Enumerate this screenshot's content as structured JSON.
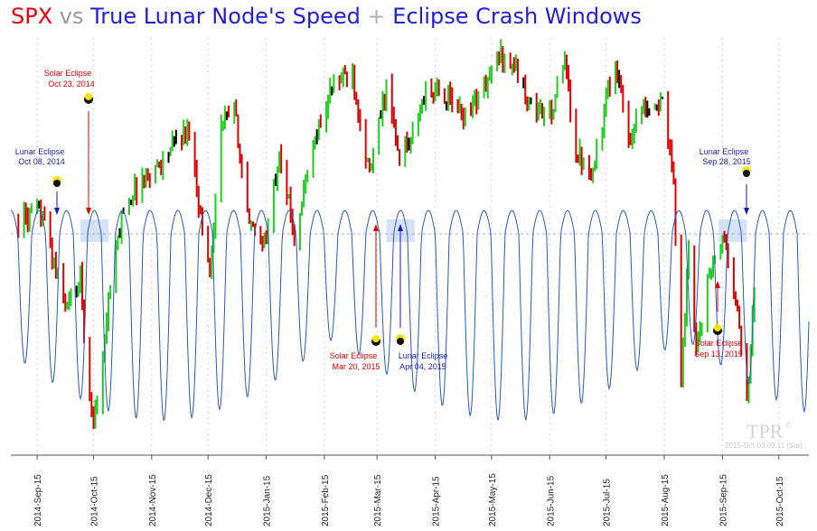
{
  "title": {
    "part1": "SPX",
    "part2": " vs ",
    "part3": "True Lunar Node's Speed",
    "part4": " + ",
    "part5": "Eclipse Crash Windows"
  },
  "colors": {
    "spx_red": "#e8000d",
    "vs_gray": "#9a9a9a",
    "title_blue": "#1f1fd8",
    "plus_gray": "#b0b0b0",
    "node_line": "#2b5ab8",
    "up_bar": "#22cc22",
    "down_bar": "#dd0000",
    "neutral_bar": "#000000",
    "window_fill": "#c8d8f4",
    "red_arrow": "#dd0000",
    "blue_arrow": "#1a1ab0",
    "ecl_yellow": "#f5e600"
  },
  "watermark": {
    "logo": "TPR",
    "copyright": "©",
    "stamp": "2015-Oct-03 09:11 (Sat)"
  },
  "annotations": [
    {
      "name": "solar-eclipse-oct23",
      "line1": "Solar Eclipse",
      "line2": "Oct 23, 2014",
      "color": "red"
    },
    {
      "name": "lunar-eclipse-oct08",
      "line1": "Lunar Eclipse",
      "line2": "Oct 08, 2014",
      "color": "blue"
    },
    {
      "name": "solar-eclipse-mar20",
      "line1": "Solar Eclipse",
      "line2": "Mar 20, 2015",
      "color": "red"
    },
    {
      "name": "lunar-eclipse-apr04",
      "line1": "Lunar Eclipse",
      "line2": "Apr 04, 2015",
      "color": "blue"
    },
    {
      "name": "solar-eclipse-sep13",
      "line1": "Solar Eclipse",
      "line2": "Sep 13, 2015",
      "color": "red"
    },
    {
      "name": "lunar-eclipse-sep28",
      "line1": "Lunar Eclipse",
      "line2": "Sep 28, 2015",
      "color": "blue"
    }
  ],
  "chart_data": {
    "type": "line",
    "x_axis_type": "date",
    "x_range": [
      "2014-09-01",
      "2015-10-31"
    ],
    "tick_labels": [
      "2014-Sep-15",
      "2014-Oct-15",
      "2014-Nov-15",
      "2014-Dec-15",
      "2015-Jan-15",
      "2015-Feb-15",
      "2015-Mar-15",
      "2015-Apr-15",
      "2015-May-15",
      "2015-Jun-15",
      "2015-Jul-15",
      "2015-Aug-15",
      "2015-Sep-15",
      "2015-Oct-15"
    ],
    "grid": "vertical dashed at each month tick",
    "series": [
      {
        "chart_type": "bar (OHLC, colored up/down)",
        "points": [
          [
            "2014-09-05",
            2008
          ],
          [
            "2014-09-18",
            2012
          ],
          [
            "2014-09-25",
            1970
          ],
          [
            "2014-10-01",
            1945
          ],
          [
            "2014-10-08",
            1965
          ],
          [
            "2014-10-13",
            1875
          ],
          [
            "2014-10-15",
            1862
          ],
          [
            "2014-10-20",
            1905
          ],
          [
            "2014-10-23",
            1950
          ],
          [
            "2014-10-31",
            2018
          ],
          [
            "2014-11-10",
            2038
          ],
          [
            "2014-11-20",
            2050
          ],
          [
            "2014-11-28",
            2067
          ],
          [
            "2014-12-05",
            2075
          ],
          [
            "2014-12-12",
            2002
          ],
          [
            "2014-12-16",
            1972
          ],
          [
            "2014-12-22",
            2078
          ],
          [
            "2014-12-29",
            2090
          ],
          [
            "2015-01-06",
            2002
          ],
          [
            "2015-01-15",
            1992
          ],
          [
            "2015-01-22",
            2062
          ],
          [
            "2015-01-30",
            1995
          ],
          [
            "2015-02-10",
            2068
          ],
          [
            "2015-02-20",
            2110
          ],
          [
            "2015-03-02",
            2117
          ],
          [
            "2015-03-11",
            2040
          ],
          [
            "2015-03-20",
            2108
          ],
          [
            "2015-03-26",
            2056
          ],
          [
            "2015-04-02",
            2066
          ],
          [
            "2015-04-10",
            2102
          ],
          [
            "2015-04-20",
            2100
          ],
          [
            "2015-04-30",
            2085
          ],
          [
            "2015-05-11",
            2105
          ],
          [
            "2015-05-20",
            2130
          ],
          [
            "2015-05-28",
            2120
          ],
          [
            "2015-06-05",
            2092
          ],
          [
            "2015-06-15",
            2084
          ],
          [
            "2015-06-23",
            2124
          ],
          [
            "2015-06-29",
            2058
          ],
          [
            "2015-07-08",
            2046
          ],
          [
            "2015-07-20",
            2128
          ],
          [
            "2015-07-27",
            2068
          ],
          [
            "2015-08-05",
            2095
          ],
          [
            "2015-08-14",
            2092
          ],
          [
            "2015-08-20",
            2035
          ],
          [
            "2015-08-24",
            1893
          ],
          [
            "2015-08-28",
            1988
          ],
          [
            "2015-09-01",
            1914
          ],
          [
            "2015-09-08",
            1970
          ],
          [
            "2015-09-16",
            1995
          ],
          [
            "2015-09-23",
            1938
          ],
          [
            "2015-09-28",
            1881
          ],
          [
            "2015-10-02",
            1951
          ]
        ]
      },
      {
        "chart_type": "line (True Lunar Node speed oscillation)"
      }
    ],
    "eclipse_windows": [
      {
        "from": "2014-10-08",
        "to": "2014-10-23"
      },
      {
        "from": "2015-03-20",
        "to": "2015-04-04"
      },
      {
        "from": "2015-09-13",
        "to": "2015-09-28"
      }
    ]
  }
}
